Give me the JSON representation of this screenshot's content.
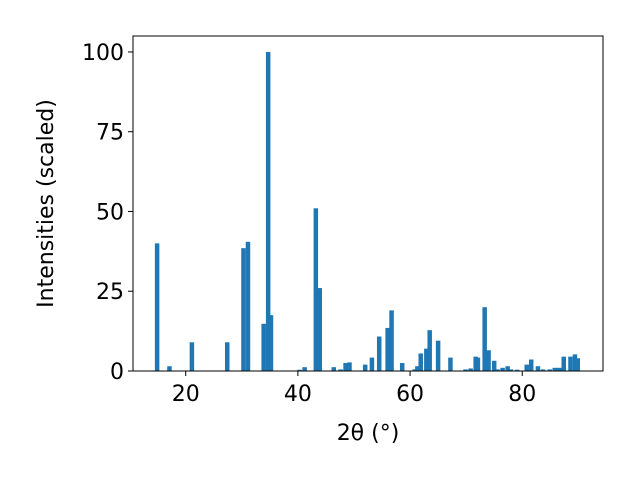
{
  "chart_data": {
    "type": "bar",
    "xlabel": "2θ (°)",
    "ylabel": "Intensities (scaled)",
    "xlim": [
      10.6,
      94.4
    ],
    "ylim": [
      0,
      105
    ],
    "xticks": [
      20,
      40,
      60,
      80
    ],
    "yticks": [
      0,
      25,
      50,
      75,
      100
    ],
    "bar_width": 0.8,
    "bar_color": "#1f77b4",
    "series": [
      {
        "x": [
          14.9,
          17.1,
          21.1,
          27.4,
          30.3,
          31.1,
          33.9,
          34.7,
          35.2,
          40.3,
          41.2,
          43.2,
          43.9,
          46.4,
          47.6,
          48.5,
          49.2,
          52.0,
          53.2,
          54.5,
          56.0,
          56.7,
          58.6,
          60.8,
          61.3,
          61.9,
          62.9,
          63.5,
          65.0,
          67.2,
          69.9,
          70.8,
          71.7,
          72.1,
          73.3,
          74.0,
          75.0,
          75.6,
          76.5,
          77.4,
          78.0,
          79.1,
          80.8,
          81.6,
          82.8,
          83.7,
          84.9,
          85.8,
          86.6,
          87.4,
          88.6,
          89.4,
          89.9
        ],
        "values": [
          40,
          1.5,
          9,
          9,
          38.5,
          40.5,
          14.8,
          100,
          17.5,
          0.4,
          1.2,
          51,
          26,
          1.2,
          0.5,
          2.5,
          2.7,
          2,
          4.2,
          10.8,
          13.5,
          19,
          2.5,
          0.5,
          1.5,
          5.5,
          7,
          12.8,
          9.5,
          4.2,
          0.5,
          0.8,
          4.5,
          4.2,
          20,
          6.5,
          3.2,
          0.5,
          1,
          1.5,
          0.5,
          0.4,
          2,
          3.6,
          1.5,
          0.5,
          0.5,
          1,
          1,
          4.5,
          4.5,
          5.2,
          4
        ]
      }
    ]
  }
}
